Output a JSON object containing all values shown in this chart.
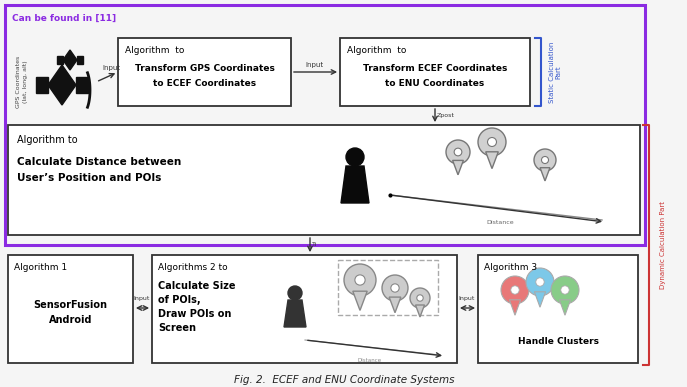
{
  "title": "Fig. 2.  ECEF and ENU Coordinate Systems",
  "bg_color": "#f5f5f5",
  "outer_border_color": "#8B2BE2",
  "static_bracket_color": "#3355cc",
  "dynamic_bracket_color": "#cc3333",
  "box_edge_color": "#333333",
  "can_be_found": "Can be found in [11]",
  "gps_label": "GPS Coordinates\n(lat, long, alt)",
  "box1_l1": "Algorithm  to",
  "box1_l2": "Transform GPS Coordinates",
  "box1_l3": "to ECEF Coordinates",
  "box2_l1": "Algorithm  to",
  "box2_l2": "Transform ECEF Coordinates",
  "box2_l3": "to ENU Coordinates",
  "mid_l1": "Algorithm to",
  "mid_l2": "Calculate Distance between",
  "mid_l3": "User’s Position and POIs",
  "alg1_l1": "Algorithm 1",
  "alg1_l2": "SensorFusion",
  "alg1_l3": "Android",
  "alg2_l1": "Algorithms 2 to",
  "alg2_l2": "Calculate Size",
  "alg2_l3": "of POIs,",
  "alg2_l4": "Draw POIs on",
  "alg2_l5": "Screen",
  "alg3_l1": "Algorithm 3",
  "alg3_l2": "Handle Clusters",
  "static_label": "Static Calculation\nPart",
  "dynamic_label": "Dynamic Calculation Part"
}
